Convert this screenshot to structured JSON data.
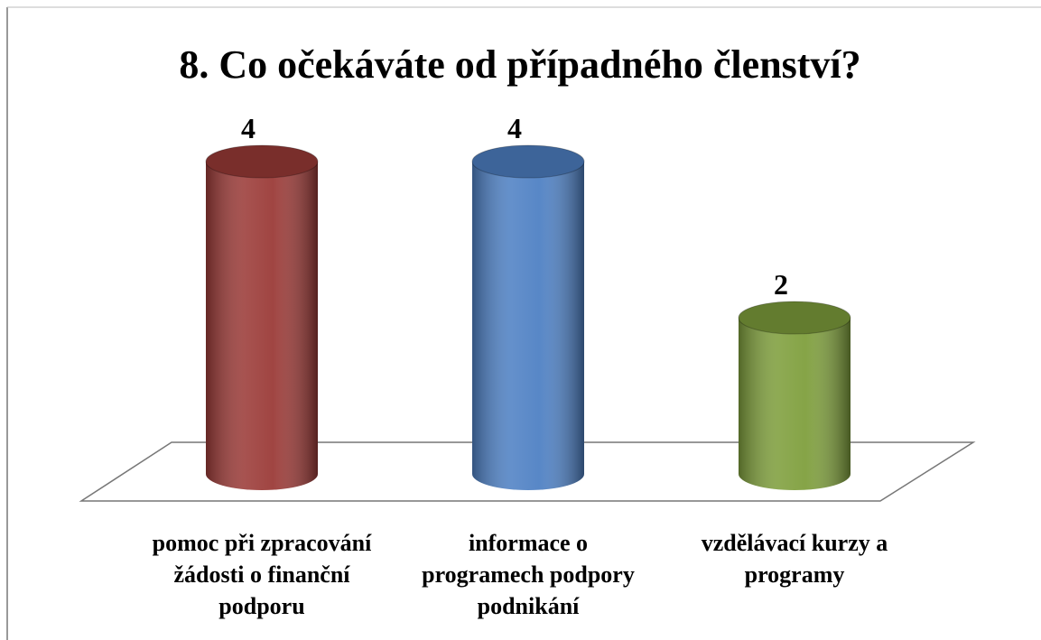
{
  "chart_data": {
    "type": "bar",
    "title": "8. Co očekáváte od případného členství?",
    "categories": [
      "pomoc při zpracování žádosti o finanční podporu",
      "informace o programech podpory podnikání",
      "vzdělávací kurzy a programy"
    ],
    "series": [
      {
        "name": null,
        "values": [
          4,
          4,
          2
        ],
        "colors": [
          "#9b3b38",
          "#4f81c4",
          "#7f9f3d"
        ]
      }
    ]
  }
}
